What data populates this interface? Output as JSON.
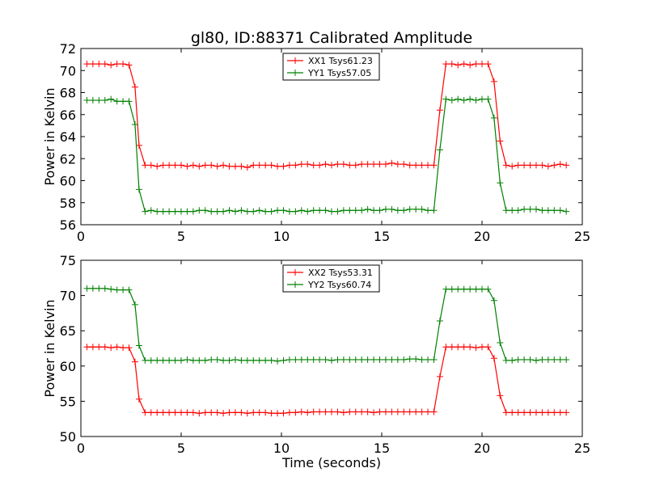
{
  "figure": {
    "title": "gl80, ID:88371 Calibrated Amplitude",
    "xlabel": "Time (seconds)"
  },
  "colors": {
    "red": "#ff0000",
    "green": "#008000",
    "axes": "#000000"
  },
  "chart_data": [
    {
      "type": "line",
      "ylabel": "Power in Kelvin",
      "xlim": [
        0,
        25
      ],
      "ylim": [
        56,
        72
      ],
      "xticks": [
        0,
        5,
        10,
        15,
        20,
        25
      ],
      "yticks": [
        56,
        58,
        60,
        62,
        64,
        66,
        68,
        70,
        72
      ],
      "grid": false,
      "legend_position": "top-center",
      "x": [
        0.3,
        0.6,
        0.9,
        1.2,
        1.5,
        1.8,
        2.1,
        2.4,
        2.7,
        2.9,
        3.2,
        3.5,
        3.8,
        4.1,
        4.4,
        4.7,
        5.0,
        5.3,
        5.6,
        5.9,
        6.2,
        6.5,
        6.8,
        7.1,
        7.4,
        7.7,
        8.0,
        8.3,
        8.6,
        8.9,
        9.2,
        9.5,
        9.8,
        10.1,
        10.4,
        10.7,
        11.0,
        11.3,
        11.6,
        11.9,
        12.2,
        12.5,
        12.8,
        13.1,
        13.4,
        13.7,
        14.0,
        14.3,
        14.6,
        14.9,
        15.2,
        15.5,
        15.8,
        16.1,
        16.4,
        16.7,
        17.0,
        17.3,
        17.6,
        17.9,
        18.2,
        18.5,
        18.8,
        19.1,
        19.4,
        19.7,
        20.0,
        20.3,
        20.6,
        20.9,
        21.2,
        21.5,
        21.8,
        22.1,
        22.4,
        22.7,
        23.0,
        23.3,
        23.6,
        23.9,
        24.2
      ],
      "series": [
        {
          "name": "XX1 Tsys61.23",
          "color": "#ff0000",
          "values": [
            70.6,
            70.6,
            70.6,
            70.6,
            70.5,
            70.6,
            70.6,
            70.5,
            68.5,
            63.2,
            61.4,
            61.4,
            61.3,
            61.4,
            61.4,
            61.4,
            61.4,
            61.3,
            61.4,
            61.3,
            61.4,
            61.4,
            61.3,
            61.4,
            61.3,
            61.3,
            61.3,
            61.2,
            61.4,
            61.4,
            61.4,
            61.4,
            61.3,
            61.3,
            61.4,
            61.4,
            61.5,
            61.5,
            61.4,
            61.4,
            61.5,
            61.4,
            61.5,
            61.5,
            61.4,
            61.4,
            61.5,
            61.5,
            61.5,
            61.5,
            61.5,
            61.6,
            61.5,
            61.5,
            61.4,
            61.4,
            61.4,
            61.4,
            61.4,
            66.4,
            70.6,
            70.6,
            70.5,
            70.6,
            70.5,
            70.6,
            70.6,
            70.6,
            69.0,
            63.6,
            61.4,
            61.3,
            61.4,
            61.4,
            61.4,
            61.4,
            61.4,
            61.3,
            61.4,
            61.5,
            61.4
          ]
        },
        {
          "name": "YY1 Tsys57.05",
          "color": "#008000",
          "values": [
            67.3,
            67.3,
            67.3,
            67.3,
            67.4,
            67.2,
            67.2,
            67.2,
            65.1,
            59.2,
            57.2,
            57.3,
            57.2,
            57.2,
            57.2,
            57.2,
            57.2,
            57.2,
            57.2,
            57.3,
            57.3,
            57.2,
            57.2,
            57.2,
            57.3,
            57.2,
            57.3,
            57.2,
            57.2,
            57.3,
            57.2,
            57.2,
            57.3,
            57.3,
            57.2,
            57.2,
            57.3,
            57.2,
            57.3,
            57.3,
            57.3,
            57.2,
            57.2,
            57.3,
            57.3,
            57.3,
            57.3,
            57.4,
            57.3,
            57.3,
            57.4,
            57.4,
            57.3,
            57.3,
            57.4,
            57.4,
            57.4,
            57.3,
            57.3,
            62.8,
            67.4,
            67.3,
            67.4,
            67.3,
            67.4,
            67.3,
            67.4,
            67.4,
            65.7,
            59.8,
            57.3,
            57.3,
            57.3,
            57.4,
            57.4,
            57.4,
            57.3,
            57.3,
            57.3,
            57.3,
            57.2
          ]
        }
      ]
    },
    {
      "type": "line",
      "ylabel": "Power in Kelvin",
      "xlabel": "Time (seconds)",
      "xlim": [
        0,
        25
      ],
      "ylim": [
        50,
        75
      ],
      "xticks": [
        0,
        5,
        10,
        15,
        20,
        25
      ],
      "yticks": [
        50,
        55,
        60,
        65,
        70,
        75
      ],
      "grid": false,
      "legend_position": "top-center",
      "x": [
        0.3,
        0.6,
        0.9,
        1.2,
        1.5,
        1.8,
        2.1,
        2.4,
        2.7,
        2.9,
        3.2,
        3.5,
        3.8,
        4.1,
        4.4,
        4.7,
        5.0,
        5.3,
        5.6,
        5.9,
        6.2,
        6.5,
        6.8,
        7.1,
        7.4,
        7.7,
        8.0,
        8.3,
        8.6,
        8.9,
        9.2,
        9.5,
        9.8,
        10.1,
        10.4,
        10.7,
        11.0,
        11.3,
        11.6,
        11.9,
        12.2,
        12.5,
        12.8,
        13.1,
        13.4,
        13.7,
        14.0,
        14.3,
        14.6,
        14.9,
        15.2,
        15.5,
        15.8,
        16.1,
        16.4,
        16.7,
        17.0,
        17.3,
        17.6,
        17.9,
        18.2,
        18.5,
        18.8,
        19.1,
        19.4,
        19.7,
        20.0,
        20.3,
        20.6,
        20.9,
        21.2,
        21.5,
        21.8,
        22.1,
        22.4,
        22.7,
        23.0,
        23.3,
        23.6,
        23.9,
        24.2
      ],
      "series": [
        {
          "name": "XX2 Tsys53.31",
          "color": "#ff0000",
          "values": [
            62.7,
            62.7,
            62.7,
            62.7,
            62.6,
            62.7,
            62.6,
            62.6,
            60.6,
            55.3,
            53.4,
            53.4,
            53.4,
            53.4,
            53.4,
            53.4,
            53.4,
            53.4,
            53.4,
            53.3,
            53.4,
            53.4,
            53.4,
            53.3,
            53.4,
            53.4,
            53.4,
            53.3,
            53.4,
            53.4,
            53.4,
            53.3,
            53.3,
            53.3,
            53.4,
            53.4,
            53.5,
            53.4,
            53.5,
            53.5,
            53.5,
            53.5,
            53.5,
            53.4,
            53.5,
            53.5,
            53.5,
            53.5,
            53.4,
            53.5,
            53.5,
            53.5,
            53.5,
            53.5,
            53.5,
            53.5,
            53.5,
            53.5,
            53.5,
            58.5,
            62.7,
            62.7,
            62.7,
            62.7,
            62.7,
            62.6,
            62.7,
            62.7,
            61.1,
            55.8,
            53.4,
            53.4,
            53.4,
            53.4,
            53.4,
            53.4,
            53.4,
            53.4,
            53.4,
            53.4,
            53.4
          ]
        },
        {
          "name": "YY2 Tsys60.74",
          "color": "#008000",
          "values": [
            71.0,
            71.0,
            71.0,
            71.0,
            70.9,
            70.8,
            70.8,
            70.8,
            68.7,
            62.9,
            60.8,
            60.8,
            60.8,
            60.8,
            60.8,
            60.8,
            60.8,
            60.9,
            60.8,
            60.8,
            60.8,
            60.9,
            60.9,
            60.8,
            60.8,
            60.9,
            60.8,
            60.8,
            60.8,
            60.8,
            60.8,
            60.8,
            60.7,
            60.8,
            60.9,
            60.9,
            60.9,
            60.9,
            60.9,
            60.9,
            60.9,
            60.8,
            60.9,
            60.9,
            60.9,
            60.9,
            60.9,
            60.9,
            60.9,
            60.9,
            60.9,
            60.9,
            60.9,
            60.9,
            61.0,
            61.0,
            60.9,
            60.9,
            60.9,
            66.4,
            70.9,
            70.9,
            70.9,
            70.9,
            70.9,
            70.9,
            70.9,
            70.9,
            69.3,
            63.3,
            60.8,
            60.8,
            60.9,
            60.9,
            60.9,
            60.8,
            60.9,
            60.9,
            60.9,
            60.9,
            60.9
          ]
        }
      ]
    }
  ]
}
